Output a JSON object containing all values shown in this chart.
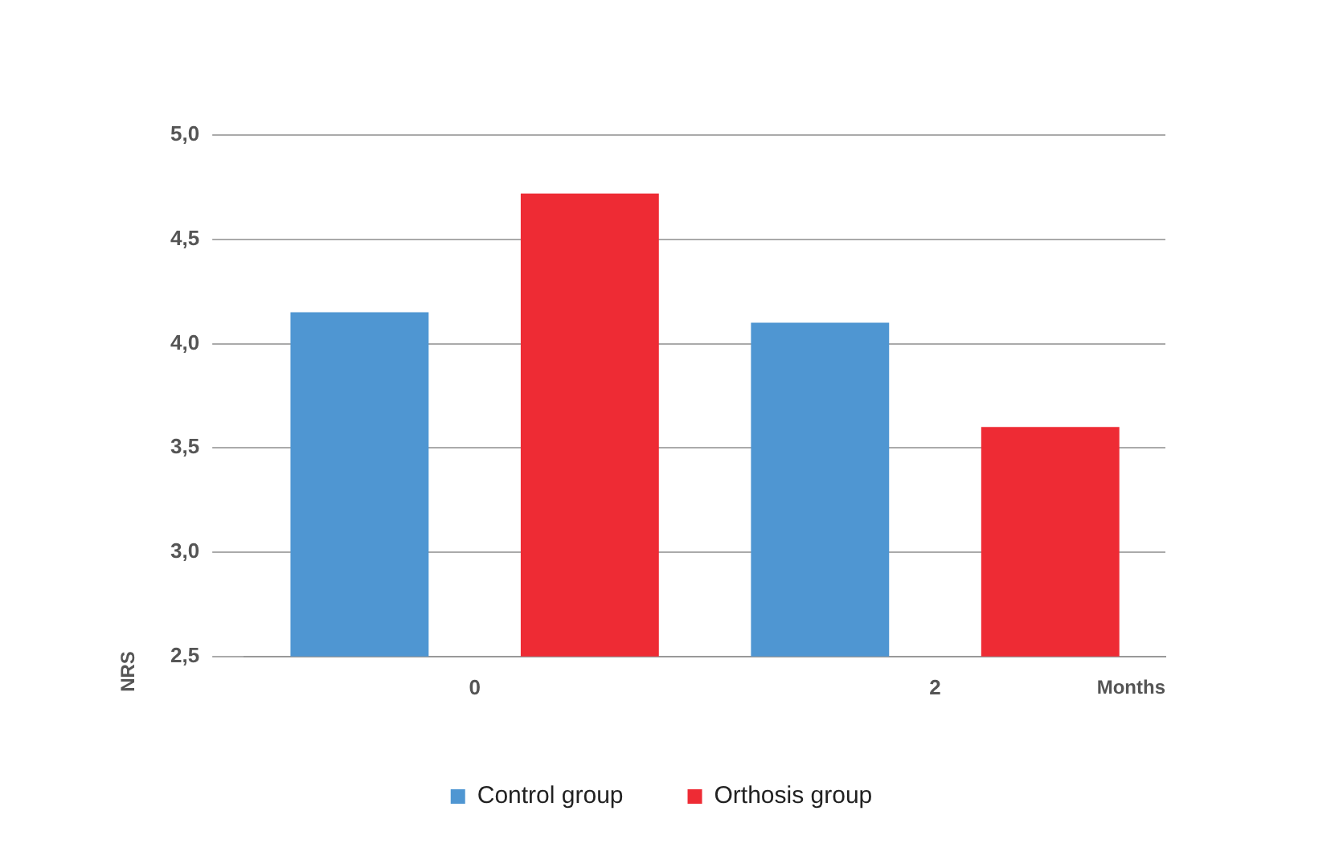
{
  "chart_data": {
    "type": "bar",
    "categories": [
      "0",
      "2"
    ],
    "xlabel": "Months",
    "ylabel": "NRS",
    "series": [
      {
        "name": "Control group",
        "color": "#4f96d2",
        "values": [
          4.15,
          4.1
        ]
      },
      {
        "name": "Orthosis group",
        "color": "#ee2b34",
        "values": [
          4.72,
          3.6
        ]
      }
    ],
    "ylim": [
      2.5,
      5
    ],
    "yticks": [
      {
        "value": 2.5,
        "label": "2,5"
      },
      {
        "value": 3,
        "label": "3,0"
      },
      {
        "value": 3.5,
        "label": "3,5"
      },
      {
        "value": 4,
        "label": "4,0"
      },
      {
        "value": 4.5,
        "label": "4,5"
      },
      {
        "value": 5,
        "label": "5,0"
      }
    ],
    "grid": "y",
    "legend": "bottom"
  }
}
